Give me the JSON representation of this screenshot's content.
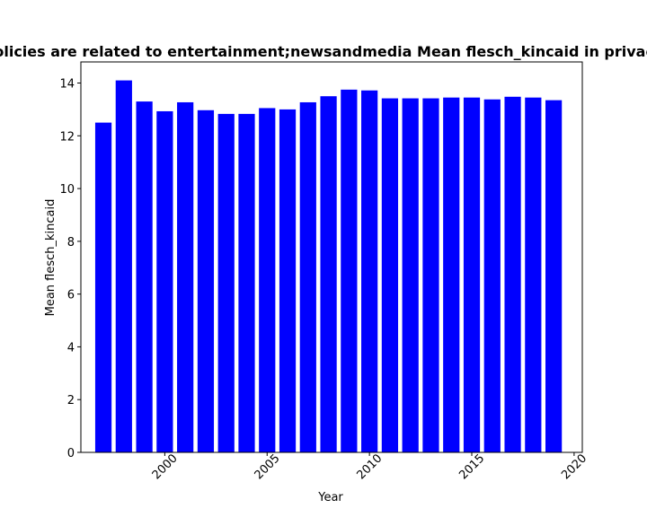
{
  "chart_data": {
    "type": "bar",
    "title": "Policies are related to entertainment;newsandmedia Mean flesch_kincaid in privacy",
    "xlabel": "Year",
    "ylabel": "Mean flesch_kincaid",
    "x": [
      1997,
      1998,
      1999,
      2000,
      2001,
      2002,
      2003,
      2004,
      2005,
      2006,
      2007,
      2008,
      2009,
      2010,
      2011,
      2012,
      2013,
      2014,
      2015,
      2016,
      2017,
      2018,
      2019
    ],
    "values": [
      12.5,
      14.1,
      13.3,
      12.93,
      13.27,
      12.97,
      12.83,
      12.83,
      13.05,
      13.0,
      13.27,
      13.5,
      13.75,
      13.72,
      13.42,
      13.42,
      13.42,
      13.45,
      13.45,
      13.38,
      13.48,
      13.45,
      13.35
    ],
    "xlim": [
      1995.9,
      2020.4
    ],
    "ylim": [
      0,
      14.8
    ],
    "xticks": [
      "2000",
      "2005",
      "2010",
      "2015",
      "2020"
    ],
    "yticks": [
      "0",
      "2",
      "4",
      "6",
      "8",
      "10",
      "12",
      "14"
    ],
    "bar_color": "#0000ff",
    "grid": false,
    "legend": "none"
  }
}
